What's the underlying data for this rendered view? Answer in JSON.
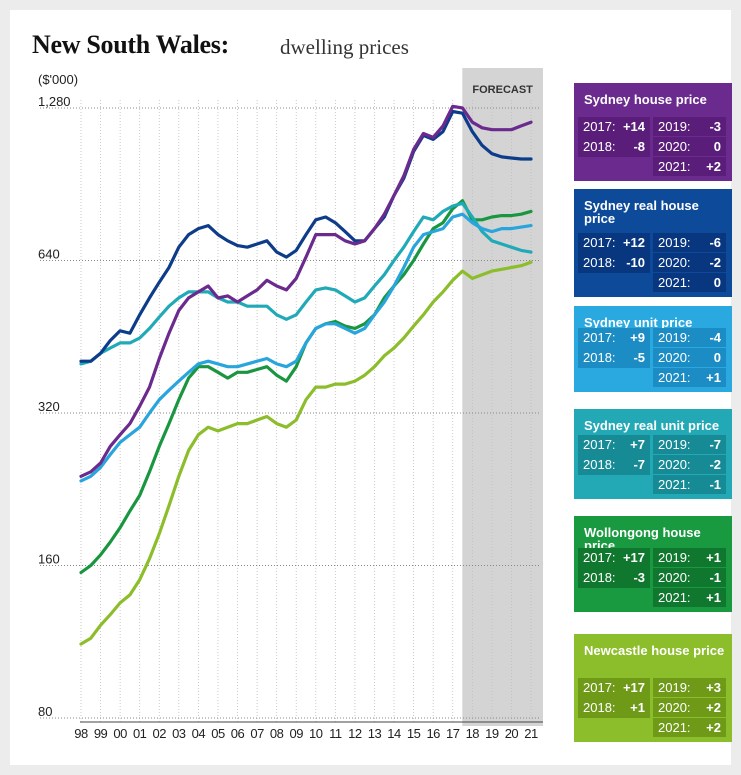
{
  "header": {
    "title": "New South Wales:",
    "subtitle": "dwelling prices"
  },
  "chart_data": {
    "type": "line",
    "y_unit_label": "($'000)",
    "y_scale": "log",
    "ylim": [
      80,
      1400
    ],
    "y_ticks": [
      1280,
      640,
      320,
      160,
      80
    ],
    "y_tick_labels": [
      "1,280",
      "640",
      "320",
      "160",
      "80"
    ],
    "x_tick_labels": [
      "98",
      "99",
      "00",
      "01",
      "02",
      "03",
      "04",
      "05",
      "06",
      "07",
      "08",
      "09",
      "10",
      "11",
      "12",
      "13",
      "14",
      "15",
      "16",
      "17",
      "18",
      "19",
      "20",
      "21"
    ],
    "xlim": [
      1997.85,
      2021.4
    ],
    "forecast_label": "FORECAST",
    "forecast_start": 2018,
    "forecast_end": 2021.5,
    "grid": "vertical dotted lines per year, horizontal dotted lines at y ticks",
    "series": [
      {
        "name": "Sydney house price",
        "color": "#6b2a8e",
        "x": [
          1998,
          1998.5,
          1999,
          1999.5,
          2000,
          2000.5,
          2001,
          2001.5,
          2002,
          2002.5,
          2003,
          2003.5,
          2004,
          2004.5,
          2005,
          2005.5,
          2006,
          2006.5,
          2007,
          2007.5,
          2008,
          2008.5,
          2009,
          2009.5,
          2010,
          2010.5,
          2011,
          2011.5,
          2012,
          2012.5,
          2013,
          2013.5,
          2014,
          2014.5,
          2015,
          2015.5,
          2016,
          2016.5,
          2017,
          2017.5,
          2018,
          2018.5,
          2019,
          2019.5,
          2020,
          2020.5,
          2021
        ],
        "y": [
          240,
          245,
          255,
          275,
          290,
          305,
          330,
          360,
          410,
          460,
          510,
          540,
          555,
          570,
          540,
          545,
          530,
          545,
          560,
          585,
          570,
          560,
          590,
          650,
          720,
          720,
          720,
          700,
          690,
          700,
          740,
          790,
          860,
          940,
          1060,
          1140,
          1120,
          1180,
          1290,
          1280,
          1200,
          1170,
          1160,
          1160,
          1160,
          1180,
          1200
        ]
      },
      {
        "name": "Sydney real house price",
        "color": "#0d3d8a",
        "x": [
          1998,
          1998.5,
          1999,
          1999.5,
          2000,
          2000.5,
          2001,
          2001.5,
          2002,
          2002.5,
          2003,
          2003.5,
          2004,
          2004.5,
          2005,
          2005.5,
          2006,
          2006.5,
          2007,
          2007.5,
          2008,
          2008.5,
          2009,
          2009.5,
          2010,
          2010.5,
          2011,
          2011.5,
          2012,
          2012.5,
          2013,
          2013.5,
          2014,
          2014.5,
          2015,
          2015.5,
          2016,
          2016.5,
          2017,
          2017.5,
          2018,
          2018.5,
          2019,
          2019.5,
          2020,
          2020.5,
          2021
        ],
        "y": [
          405,
          405,
          420,
          445,
          465,
          460,
          500,
          540,
          580,
          620,
          680,
          720,
          740,
          750,
          720,
          700,
          685,
          680,
          690,
          700,
          665,
          650,
          670,
          720,
          770,
          780,
          760,
          730,
          700,
          700,
          740,
          780,
          860,
          930,
          1050,
          1130,
          1110,
          1150,
          1260,
          1250,
          1150,
          1080,
          1040,
          1025,
          1020,
          1015,
          1015
        ]
      },
      {
        "name": "Sydney unit price",
        "color": "#28a5dc",
        "x": [
          1998,
          1998.5,
          1999,
          1999.5,
          2000,
          2000.5,
          2001,
          2001.5,
          2002,
          2002.5,
          2003,
          2003.5,
          2004,
          2004.5,
          2005,
          2005.5,
          2006,
          2006.5,
          2007,
          2007.5,
          2008,
          2008.5,
          2009,
          2009.5,
          2010,
          2010.5,
          2011,
          2011.5,
          2012,
          2012.5,
          2013,
          2013.5,
          2014,
          2014.5,
          2015,
          2015.5,
          2016,
          2016.5,
          2017,
          2017.5,
          2018,
          2018.5,
          2019,
          2019.5,
          2020,
          2020.5,
          2021
        ],
        "y": [
          235,
          240,
          250,
          265,
          280,
          290,
          300,
          320,
          340,
          355,
          370,
          385,
          400,
          405,
          400,
          395,
          395,
          400,
          405,
          410,
          400,
          395,
          405,
          440,
          470,
          480,
          480,
          470,
          460,
          470,
          500,
          530,
          570,
          620,
          680,
          720,
          730,
          740,
          780,
          790,
          760,
          740,
          730,
          740,
          740,
          745,
          750
        ]
      },
      {
        "name": "Sydney real unit price",
        "color": "#20aab8",
        "x": [
          1998,
          1998.5,
          1999,
          1999.5,
          2000,
          2000.5,
          2001,
          2001.5,
          2002,
          2002.5,
          2003,
          2003.5,
          2004,
          2004.5,
          2005,
          2005.5,
          2006,
          2006.5,
          2007,
          2007.5,
          2008,
          2008.5,
          2009,
          2009.5,
          2010,
          2010.5,
          2011,
          2011.5,
          2012,
          2012.5,
          2013,
          2013.5,
          2014,
          2014.5,
          2015,
          2015.5,
          2016,
          2016.5,
          2017,
          2017.5,
          2018,
          2018.5,
          2019,
          2019.5,
          2020,
          2020.5,
          2021
        ],
        "y": [
          400,
          405,
          420,
          430,
          440,
          440,
          450,
          470,
          495,
          520,
          540,
          555,
          555,
          555,
          540,
          530,
          530,
          520,
          520,
          520,
          500,
          490,
          500,
          530,
          560,
          565,
          560,
          545,
          530,
          540,
          570,
          600,
          640,
          680,
          730,
          780,
          770,
          800,
          820,
          830,
          780,
          730,
          700,
          690,
          680,
          670,
          665
        ]
      },
      {
        "name": "Wollongong house price",
        "color": "#1a9640",
        "x": [
          1998,
          1998.5,
          1999,
          1999.5,
          2000,
          2000.5,
          2001,
          2001.5,
          2002,
          2002.5,
          2003,
          2003.5,
          2004,
          2004.5,
          2005,
          2005.5,
          2006,
          2006.5,
          2007,
          2007.5,
          2008,
          2008.5,
          2009,
          2009.5,
          2010,
          2010.5,
          2011,
          2011.5,
          2012,
          2012.5,
          2013,
          2013.5,
          2014,
          2014.5,
          2015,
          2015.5,
          2016,
          2016.5,
          2017,
          2017.5,
          2018,
          2018.5,
          2019,
          2019.5,
          2020,
          2020.5,
          2021
        ],
        "y": [
          155,
          160,
          168,
          178,
          190,
          205,
          220,
          245,
          275,
          305,
          340,
          375,
          395,
          395,
          385,
          375,
          385,
          385,
          390,
          395,
          380,
          370,
          395,
          440,
          470,
          480,
          485,
          475,
          470,
          480,
          500,
          540,
          570,
          600,
          640,
          690,
          740,
          760,
          810,
          840,
          770,
          770,
          780,
          785,
          785,
          790,
          800
        ]
      },
      {
        "name": "Newcastle house price",
        "color": "#8cbd2a",
        "x": [
          1998,
          1998.5,
          1999,
          1999.5,
          2000,
          2000.5,
          2001,
          2001.5,
          2002,
          2002.5,
          2003,
          2003.5,
          2004,
          2004.5,
          2005,
          2005.5,
          2006,
          2006.5,
          2007,
          2007.5,
          2008,
          2008.5,
          2009,
          2009.5,
          2010,
          2010.5,
          2011,
          2011.5,
          2012,
          2012.5,
          2013,
          2013.5,
          2014,
          2014.5,
          2015,
          2015.5,
          2016,
          2016.5,
          2017,
          2017.5,
          2018,
          2018.5,
          2019,
          2019.5,
          2020,
          2020.5,
          2021
        ],
        "y": [
          112,
          115,
          122,
          128,
          135,
          140,
          150,
          165,
          185,
          210,
          240,
          270,
          290,
          300,
          295,
          300,
          305,
          305,
          310,
          315,
          305,
          300,
          310,
          340,
          360,
          360,
          365,
          365,
          370,
          380,
          395,
          415,
          430,
          450,
          475,
          500,
          530,
          555,
          585,
          610,
          590,
          600,
          610,
          615,
          620,
          625,
          635
        ]
      }
    ]
  },
  "panels": [
    {
      "title": "Sydney house price",
      "color": "#6b2a8e",
      "cell_color": "#5a1e7a",
      "left": [
        {
          "year": "2017:",
          "value": "+14"
        },
        {
          "year": "2018:",
          "value": "-8"
        }
      ],
      "right": [
        {
          "year": "2019:",
          "value": "-3"
        },
        {
          "year": "2020:",
          "value": "0"
        },
        {
          "year": "2021:",
          "value": "+2"
        }
      ]
    },
    {
      "title": "Sydney real house price",
      "color": "#0d4a9a",
      "cell_color": "#083780",
      "left": [
        {
          "year": "2017:",
          "value": "+12"
        },
        {
          "year": "2018:",
          "value": "-10"
        }
      ],
      "right": [
        {
          "year": "2019:",
          "value": "-6"
        },
        {
          "year": "2020:",
          "value": "-2"
        },
        {
          "year": "2021:",
          "value": "0"
        }
      ]
    },
    {
      "title": "Sydney unit price",
      "color": "#2aa8e0",
      "cell_color": "#1b8cc4",
      "left": [
        {
          "year": "2017:",
          "value": "+9"
        },
        {
          "year": "2018:",
          "value": "-5"
        }
      ],
      "right": [
        {
          "year": "2019:",
          "value": "-4"
        },
        {
          "year": "2020:",
          "value": "0"
        },
        {
          "year": "2021:",
          "value": "+1"
        }
      ]
    },
    {
      "title": "Sydney real unit price",
      "color": "#22a9b5",
      "cell_color": "#168b96",
      "left": [
        {
          "year": "2017:",
          "value": "+7"
        },
        {
          "year": "2018:",
          "value": "-7"
        }
      ],
      "right": [
        {
          "year": "2019:",
          "value": "-7"
        },
        {
          "year": "2020:",
          "value": "-2"
        },
        {
          "year": "2021:",
          "value": "-1"
        }
      ]
    },
    {
      "title": "Wollongong house price",
      "color": "#1a9a40",
      "cell_color": "#10782e",
      "left": [
        {
          "year": "2017:",
          "value": "+17"
        },
        {
          "year": "2018:",
          "value": "-3"
        }
      ],
      "right": [
        {
          "year": "2019:",
          "value": "+1"
        },
        {
          "year": "2020:",
          "value": "-1"
        },
        {
          "year": "2021:",
          "value": "+1"
        }
      ]
    },
    {
      "title": "Newcastle house price",
      "color": "#8cbd2a",
      "cell_color": "#6e9a18",
      "left": [
        {
          "year": "2017:",
          "value": "+17"
        },
        {
          "year": "2018:",
          "value": "+1"
        }
      ],
      "right": [
        {
          "year": "2019:",
          "value": "+3"
        },
        {
          "year": "2020:",
          "value": "+2"
        },
        {
          "year": "2021:",
          "value": "+2"
        }
      ]
    }
  ]
}
